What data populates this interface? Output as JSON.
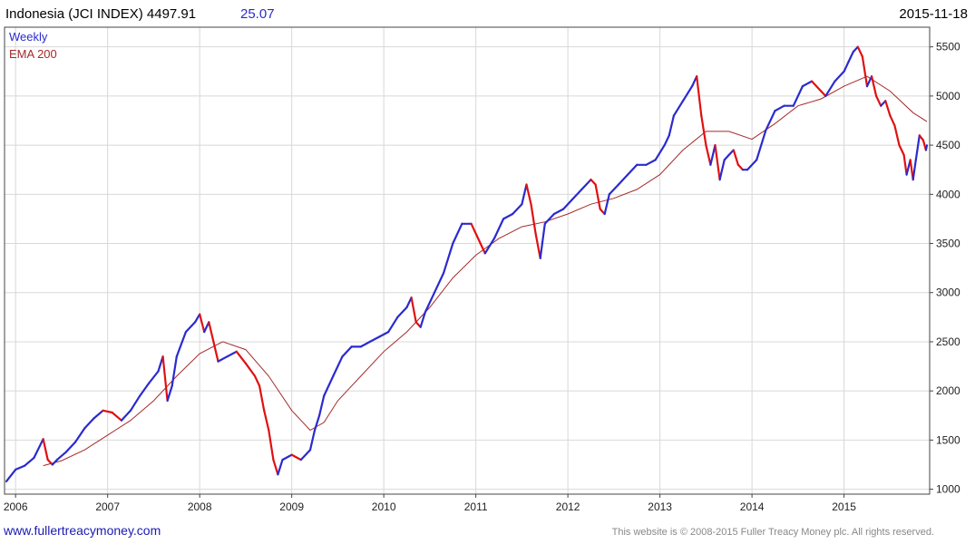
{
  "header": {
    "title": "Indonesia (JCI INDEX) 4497.91",
    "change": "25.07",
    "date": "2015-11-18"
  },
  "footer": {
    "website": "www.fullertreacymoney.com",
    "copyright": "This website is © 2008-2015 Fuller Treacy Money plc. All rights reserved."
  },
  "colors": {
    "up": "#2a2ad0",
    "down": "#e01010",
    "ema": "#a52a2a",
    "grid": "#d8d8d8",
    "change": "#2a2ad0",
    "website": "#1a1ab0"
  },
  "chart_data": {
    "type": "line",
    "legend": [
      {
        "name": "Weekly",
        "color": "#2a2ad0"
      },
      {
        "name": "EMA 200",
        "color": "#a52a2a"
      }
    ],
    "legend_position": "top-left",
    "y_axis_position": "right",
    "ylim": [
      950,
      5700
    ],
    "xlim": [
      2005.88,
      2015.93
    ],
    "yticks": [
      1000,
      1500,
      2000,
      2500,
      3000,
      3500,
      4000,
      4500,
      5000,
      5500
    ],
    "xticks": [
      {
        "label": "2006",
        "value": 2006
      },
      {
        "label": "2007",
        "value": 2007
      },
      {
        "label": "2008",
        "value": 2008
      },
      {
        "label": "2009",
        "value": 2009
      },
      {
        "label": "2010",
        "value": 2010
      },
      {
        "label": "2011",
        "value": 2011
      },
      {
        "label": "2012",
        "value": 2012
      },
      {
        "label": "2013",
        "value": 2013
      },
      {
        "label": "2014",
        "value": 2014
      },
      {
        "label": "2015",
        "value": 2015
      }
    ],
    "grid": true,
    "series": [
      {
        "name": "Weekly",
        "points": [
          [
            2005.9,
            1080
          ],
          [
            2006.0,
            1200
          ],
          [
            2006.1,
            1240
          ],
          [
            2006.2,
            1320
          ],
          [
            2006.3,
            1510
          ],
          [
            2006.35,
            1300
          ],
          [
            2006.4,
            1250
          ],
          [
            2006.45,
            1300
          ],
          [
            2006.55,
            1380
          ],
          [
            2006.65,
            1480
          ],
          [
            2006.75,
            1620
          ],
          [
            2006.85,
            1720
          ],
          [
            2006.95,
            1800
          ],
          [
            2007.05,
            1780
          ],
          [
            2007.15,
            1700
          ],
          [
            2007.25,
            1800
          ],
          [
            2007.35,
            1950
          ],
          [
            2007.45,
            2080
          ],
          [
            2007.55,
            2200
          ],
          [
            2007.6,
            2350
          ],
          [
            2007.65,
            1900
          ],
          [
            2007.7,
            2050
          ],
          [
            2007.75,
            2350
          ],
          [
            2007.85,
            2600
          ],
          [
            2007.95,
            2700
          ],
          [
            2008.0,
            2780
          ],
          [
            2008.05,
            2600
          ],
          [
            2008.1,
            2700
          ],
          [
            2008.15,
            2500
          ],
          [
            2008.2,
            2300
          ],
          [
            2008.3,
            2350
          ],
          [
            2008.4,
            2400
          ],
          [
            2008.5,
            2280
          ],
          [
            2008.6,
            2150
          ],
          [
            2008.65,
            2050
          ],
          [
            2008.7,
            1800
          ],
          [
            2008.75,
            1600
          ],
          [
            2008.8,
            1300
          ],
          [
            2008.85,
            1150
          ],
          [
            2008.9,
            1300
          ],
          [
            2009.0,
            1350
          ],
          [
            2009.1,
            1300
          ],
          [
            2009.2,
            1400
          ],
          [
            2009.25,
            1600
          ],
          [
            2009.3,
            1750
          ],
          [
            2009.35,
            1950
          ],
          [
            2009.45,
            2150
          ],
          [
            2009.55,
            2350
          ],
          [
            2009.65,
            2450
          ],
          [
            2009.75,
            2450
          ],
          [
            2009.85,
            2500
          ],
          [
            2009.95,
            2550
          ],
          [
            2010.05,
            2600
          ],
          [
            2010.15,
            2750
          ],
          [
            2010.25,
            2850
          ],
          [
            2010.3,
            2950
          ],
          [
            2010.35,
            2700
          ],
          [
            2010.4,
            2650
          ],
          [
            2010.45,
            2800
          ],
          [
            2010.55,
            3000
          ],
          [
            2010.65,
            3200
          ],
          [
            2010.75,
            3500
          ],
          [
            2010.85,
            3700
          ],
          [
            2010.95,
            3700
          ],
          [
            2011.05,
            3500
          ],
          [
            2011.1,
            3400
          ],
          [
            2011.2,
            3550
          ],
          [
            2011.3,
            3750
          ],
          [
            2011.4,
            3800
          ],
          [
            2011.5,
            3900
          ],
          [
            2011.55,
            4100
          ],
          [
            2011.6,
            3900
          ],
          [
            2011.65,
            3600
          ],
          [
            2011.7,
            3350
          ],
          [
            2011.75,
            3700
          ],
          [
            2011.85,
            3800
          ],
          [
            2011.95,
            3850
          ],
          [
            2012.05,
            3950
          ],
          [
            2012.15,
            4050
          ],
          [
            2012.25,
            4150
          ],
          [
            2012.3,
            4100
          ],
          [
            2012.35,
            3850
          ],
          [
            2012.4,
            3800
          ],
          [
            2012.45,
            4000
          ],
          [
            2012.55,
            4100
          ],
          [
            2012.65,
            4200
          ],
          [
            2012.75,
            4300
          ],
          [
            2012.85,
            4300
          ],
          [
            2012.95,
            4350
          ],
          [
            2013.05,
            4500
          ],
          [
            2013.1,
            4600
          ],
          [
            2013.15,
            4800
          ],
          [
            2013.25,
            4950
          ],
          [
            2013.35,
            5100
          ],
          [
            2013.4,
            5200
          ],
          [
            2013.45,
            4800
          ],
          [
            2013.5,
            4500
          ],
          [
            2013.55,
            4300
          ],
          [
            2013.6,
            4500
          ],
          [
            2013.65,
            4150
          ],
          [
            2013.7,
            4350
          ],
          [
            2013.75,
            4400
          ],
          [
            2013.8,
            4450
          ],
          [
            2013.85,
            4300
          ],
          [
            2013.9,
            4250
          ],
          [
            2013.95,
            4250
          ],
          [
            2014.05,
            4350
          ],
          [
            2014.15,
            4650
          ],
          [
            2014.25,
            4850
          ],
          [
            2014.35,
            4900
          ],
          [
            2014.45,
            4900
          ],
          [
            2014.55,
            5100
          ],
          [
            2014.65,
            5150
          ],
          [
            2014.75,
            5050
          ],
          [
            2014.8,
            5000
          ],
          [
            2014.9,
            5150
          ],
          [
            2015.0,
            5250
          ],
          [
            2015.05,
            5350
          ],
          [
            2015.1,
            5450
          ],
          [
            2015.15,
            5500
          ],
          [
            2015.2,
            5400
          ],
          [
            2015.25,
            5100
          ],
          [
            2015.3,
            5200
          ],
          [
            2015.35,
            5000
          ],
          [
            2015.4,
            4900
          ],
          [
            2015.45,
            4950
          ],
          [
            2015.5,
            4800
          ],
          [
            2015.55,
            4700
          ],
          [
            2015.6,
            4500
          ],
          [
            2015.65,
            4400
          ],
          [
            2015.68,
            4200
          ],
          [
            2015.72,
            4350
          ],
          [
            2015.75,
            4150
          ],
          [
            2015.78,
            4350
          ],
          [
            2015.82,
            4600
          ],
          [
            2015.86,
            4550
          ],
          [
            2015.89,
            4450
          ],
          [
            2015.9,
            4498
          ]
        ]
      },
      {
        "name": "EMA 200",
        "points": [
          [
            2006.3,
            1240
          ],
          [
            2006.5,
            1290
          ],
          [
            2006.75,
            1400
          ],
          [
            2007.0,
            1550
          ],
          [
            2007.25,
            1700
          ],
          [
            2007.5,
            1900
          ],
          [
            2007.75,
            2150
          ],
          [
            2008.0,
            2380
          ],
          [
            2008.25,
            2500
          ],
          [
            2008.5,
            2420
          ],
          [
            2008.75,
            2150
          ],
          [
            2009.0,
            1800
          ],
          [
            2009.2,
            1600
          ],
          [
            2009.35,
            1680
          ],
          [
            2009.5,
            1900
          ],
          [
            2009.75,
            2150
          ],
          [
            2010.0,
            2400
          ],
          [
            2010.25,
            2600
          ],
          [
            2010.5,
            2850
          ],
          [
            2010.75,
            3150
          ],
          [
            2011.0,
            3380
          ],
          [
            2011.25,
            3550
          ],
          [
            2011.5,
            3670
          ],
          [
            2011.75,
            3720
          ],
          [
            2012.0,
            3800
          ],
          [
            2012.25,
            3900
          ],
          [
            2012.5,
            3960
          ],
          [
            2012.75,
            4050
          ],
          [
            2013.0,
            4200
          ],
          [
            2013.25,
            4450
          ],
          [
            2013.5,
            4640
          ],
          [
            2013.75,
            4640
          ],
          [
            2014.0,
            4560
          ],
          [
            2014.25,
            4720
          ],
          [
            2014.5,
            4900
          ],
          [
            2014.75,
            4970
          ],
          [
            2015.0,
            5100
          ],
          [
            2015.25,
            5200
          ],
          [
            2015.5,
            5050
          ],
          [
            2015.75,
            4830
          ],
          [
            2015.9,
            4740
          ]
        ]
      }
    ]
  }
}
